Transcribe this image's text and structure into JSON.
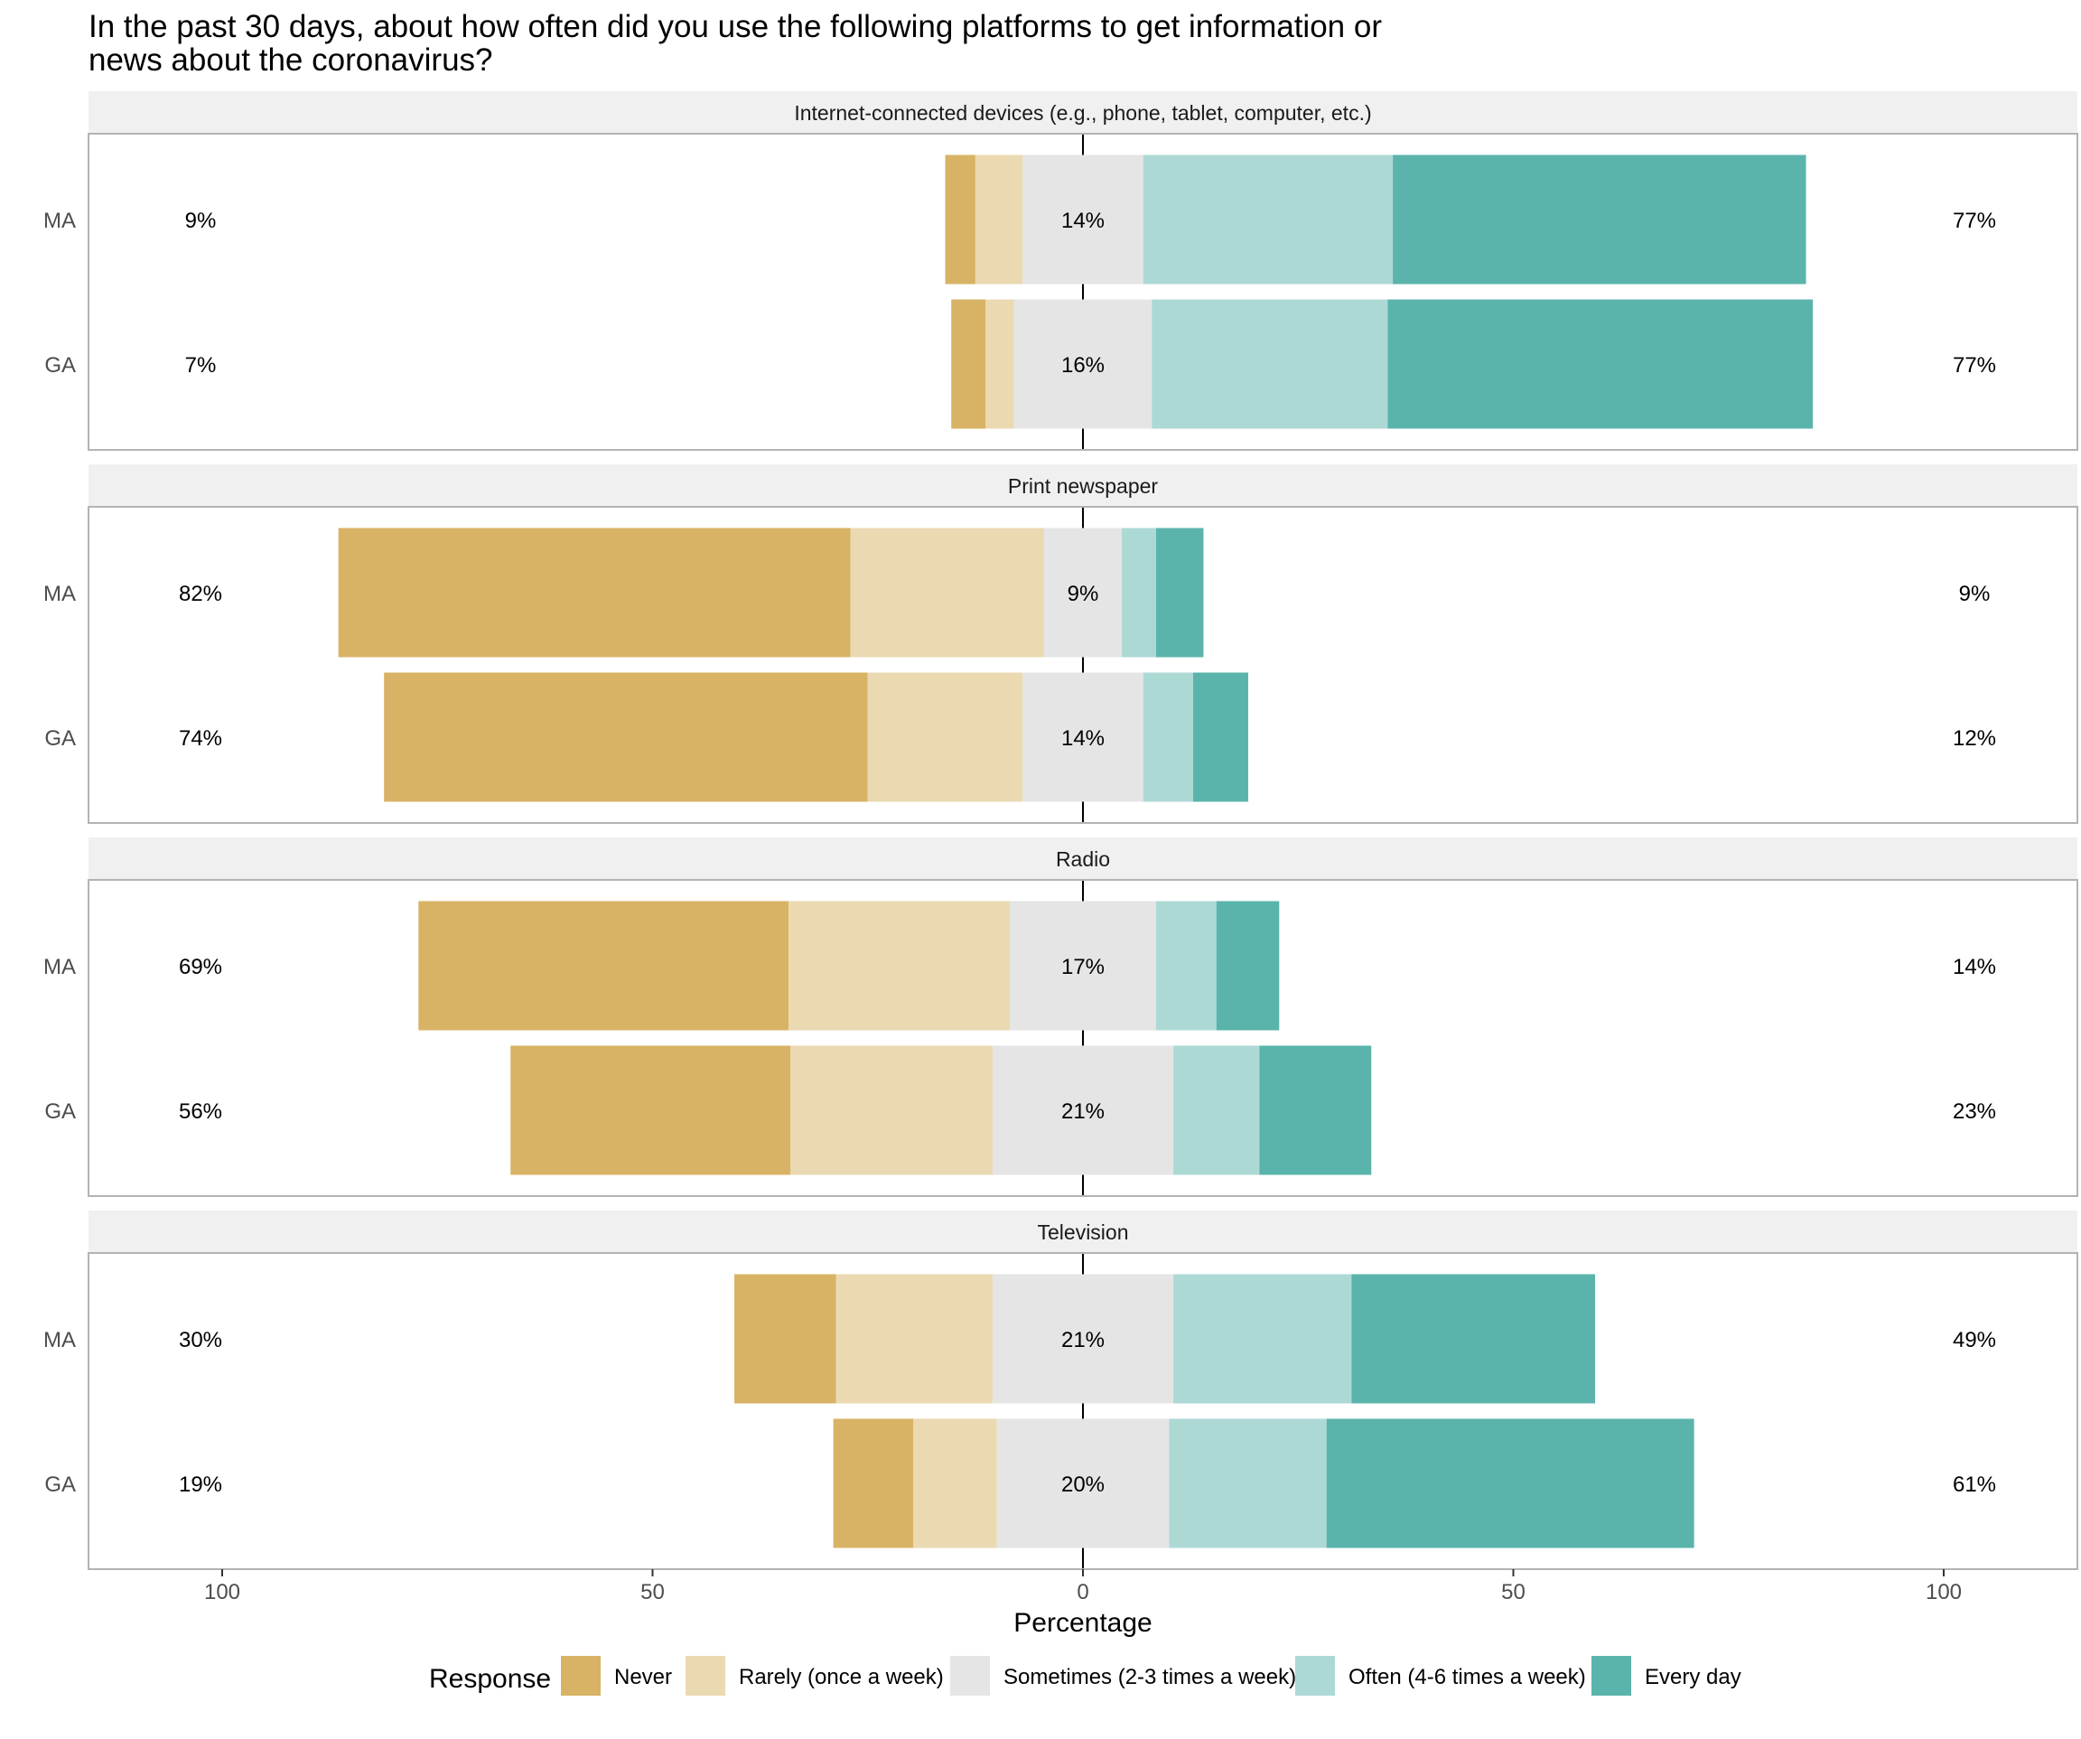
{
  "chart_data": {
    "type": "bar",
    "subtype": "diverging-stacked-horizontal",
    "title_lines": [
      "In the past 30 days, about how often did you use the following platforms to get information or",
      "news about the coronavirus?"
    ],
    "xlabel": "Percentage",
    "x_ticks": [
      {
        "value": -100,
        "label": "100"
      },
      {
        "value": -50,
        "label": "50"
      },
      {
        "value": 0,
        "label": "0"
      },
      {
        "value": 50,
        "label": "50"
      },
      {
        "value": 100,
        "label": "100"
      }
    ],
    "xlim": [
      -115,
      116
    ],
    "legend": {
      "title": "Response",
      "position": "bottom",
      "items": [
        {
          "label": "Never",
          "color": "#D8B365"
        },
        {
          "label": "Rarely (once a week)",
          "color": "#EBD9B2"
        },
        {
          "label": "Sometimes (2-3 times a week)",
          "color": "#E5E5E5"
        },
        {
          "label": "Often (4-6 times a week)",
          "color": "#ADD9D5"
        },
        {
          "label": "Every day",
          "color": "#5AB4AC"
        }
      ]
    },
    "facets": [
      {
        "title": "Internet-connected devices (e.g., phone, tablet, computer, etc.)",
        "rows": [
          {
            "label": "MA",
            "values": [
              3.5,
              5.5,
              14,
              29,
              48
            ],
            "left_label": "9%",
            "center_label": "14%",
            "right_label": "77%"
          },
          {
            "label": "GA",
            "values": [
              4,
              3.3,
              16,
              27.4,
              49.4
            ],
            "left_label": "7%",
            "center_label": "16%",
            "right_label": "77%"
          }
        ]
      },
      {
        "title": "Print newspaper",
        "rows": [
          {
            "label": "MA",
            "values": [
              59.5,
              22.5,
              9,
              4,
              5.5
            ],
            "left_label": "82%",
            "center_label": "9%",
            "right_label": "9%"
          },
          {
            "label": "GA",
            "values": [
              56.2,
              18,
              14,
              5.8,
              6.4
            ],
            "left_label": "74%",
            "center_label": "14%",
            "right_label": "12%"
          }
        ]
      },
      {
        "title": "Radio",
        "rows": [
          {
            "label": "MA",
            "values": [
              43,
              25.7,
              17,
              7,
              7.3
            ],
            "left_label": "69%",
            "center_label": "17%",
            "right_label": "14%"
          },
          {
            "label": "GA",
            "values": [
              32.5,
              23.5,
              21,
              10,
              13
            ],
            "left_label": "56%",
            "center_label": "21%",
            "right_label": "23%"
          }
        ]
      },
      {
        "title": "Television",
        "rows": [
          {
            "label": "MA",
            "values": [
              11.8,
              18.2,
              21,
              20.7,
              28.3
            ],
            "left_label": "30%",
            "center_label": "21%",
            "right_label": "49%"
          },
          {
            "label": "GA",
            "values": [
              9.3,
              9.7,
              20,
              18.3,
              42.7
            ],
            "left_label": "19%",
            "center_label": "20%",
            "right_label": "61%"
          }
        ]
      }
    ]
  }
}
